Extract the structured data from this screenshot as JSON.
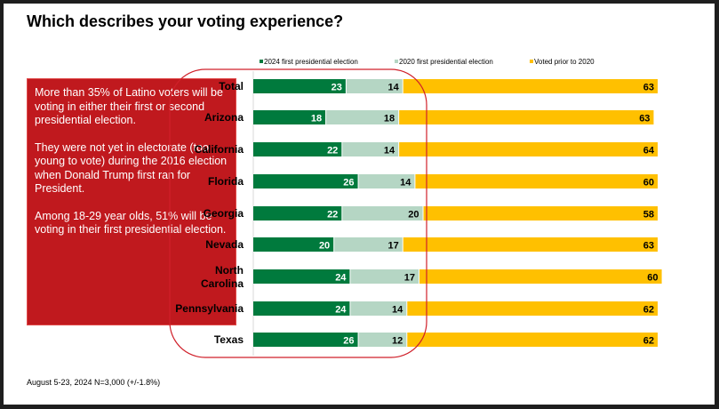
{
  "title": "Which describes your voting experience?",
  "note": {
    "paragraphs": [
      "More than 35% of Latino voters will be voting in either their first or second presidential election.",
      "They were not yet in electorate (too young to vote) during the 2016 election when Donald Trump first ran for President.",
      "Among 18-29 year olds, 51% will be voting in their first presidential election."
    ]
  },
  "footer": "August 5-23, 2024   N=3,000 (+/-1.8%)",
  "chart_data": {
    "type": "bar",
    "orientation": "horizontal",
    "stacked": true,
    "categories": [
      "Total",
      "Arizona",
      "California",
      "Florida",
      "Georgia",
      "Nevada",
      "North Carolina",
      "Pennsylvania",
      "Texas"
    ],
    "series": [
      {
        "name": "2024 first presidential election",
        "color": "#007a3d",
        "label_color": "#ffffff",
        "values": [
          23,
          18,
          22,
          26,
          22,
          20,
          24,
          24,
          26
        ]
      },
      {
        "name": "2020 first presidential election",
        "color": "#b5d6c4",
        "label_color": "#000000",
        "values": [
          14,
          18,
          14,
          14,
          20,
          17,
          17,
          14,
          12
        ]
      },
      {
        "name": "Voted prior to 2020",
        "color": "#ffc000",
        "label_color": "#000000",
        "values": [
          63,
          63,
          64,
          60,
          58,
          63,
          60,
          62,
          62
        ]
      }
    ],
    "xlim": [
      0,
      100
    ],
    "legend": "top",
    "grid": false,
    "annotation": {
      "type": "rounded-outline",
      "color": "#d0202a"
    }
  }
}
